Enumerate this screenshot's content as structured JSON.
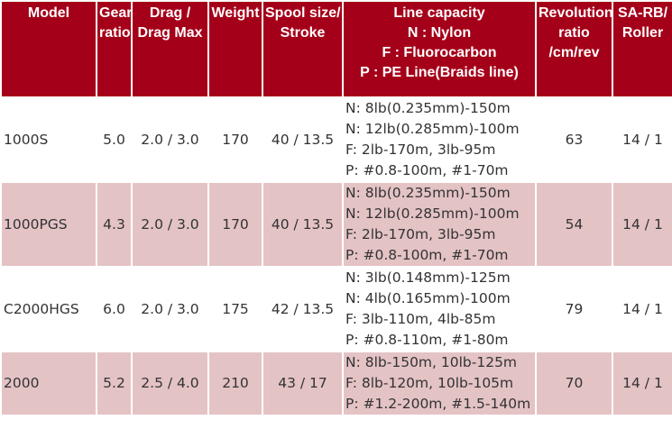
{
  "table": {
    "header": [
      [
        "Model"
      ],
      [
        "Gear",
        "ratio"
      ],
      [
        "Drag /",
        "Drag Max"
      ],
      [
        "Weight"
      ],
      [
        "Spool size/",
        "Stroke"
      ],
      [
        "Line capacity",
        "N : Nylon",
        "F : Fluorocarbon",
        "P : PE Line(Braids line)"
      ],
      [
        "Revolution",
        "ratio",
        "/cm/rev"
      ],
      [
        "SA-RB/",
        "Roller"
      ]
    ],
    "rows": [
      [
        [
          "1000S"
        ],
        [
          "5.0"
        ],
        [
          "2.0 / 3.0"
        ],
        [
          "170"
        ],
        [
          "40 / 13.5"
        ],
        [
          "N: 8lb(0.235mm)-150m",
          "N: 12lb(0.285mm)-100m",
          "F: 2lb-170m, 3lb-95m",
          "P: #0.8-100m, #1-70m"
        ],
        [
          "63"
        ],
        [
          "14 / 1"
        ]
      ],
      [
        [
          "1000PGS"
        ],
        [
          "4.3"
        ],
        [
          "2.0 / 3.0"
        ],
        [
          "170"
        ],
        [
          "40 / 13.5"
        ],
        [
          "N: 8lb(0.235mm)-150m",
          "N: 12lb(0.285mm)-100m",
          "F: 2lb-170m, 3lb-95m",
          "P: #0.8-100m, #1-70m"
        ],
        [
          "54"
        ],
        [
          "14 / 1"
        ]
      ],
      [
        [
          "C2000HGS"
        ],
        [
          "6.0"
        ],
        [
          "2.0 / 3.0"
        ],
        [
          "175"
        ],
        [
          "42 / 13.5"
        ],
        [
          "N: 3lb(0.148mm)-125m",
          "N: 4lb(0.165mm)-100m",
          "F: 3lb-110m, 4lb-85m",
          "P: #0.8-110m, #1-80m"
        ],
        [
          "79"
        ],
        [
          "14 / 1"
        ]
      ],
      [
        [
          "2000"
        ],
        [
          "5.2"
        ],
        [
          "2.5 / 4.0"
        ],
        [
          "210"
        ],
        [
          "43 / 17"
        ],
        [
          "N: 8lb-150m, 10lb-125m",
          "F: 8lb-120m, 10lb-105m",
          "P: #1.2-200m, #1.5-140m"
        ],
        [
          "70"
        ],
        [
          "14 / 1"
        ]
      ]
    ]
  }
}
